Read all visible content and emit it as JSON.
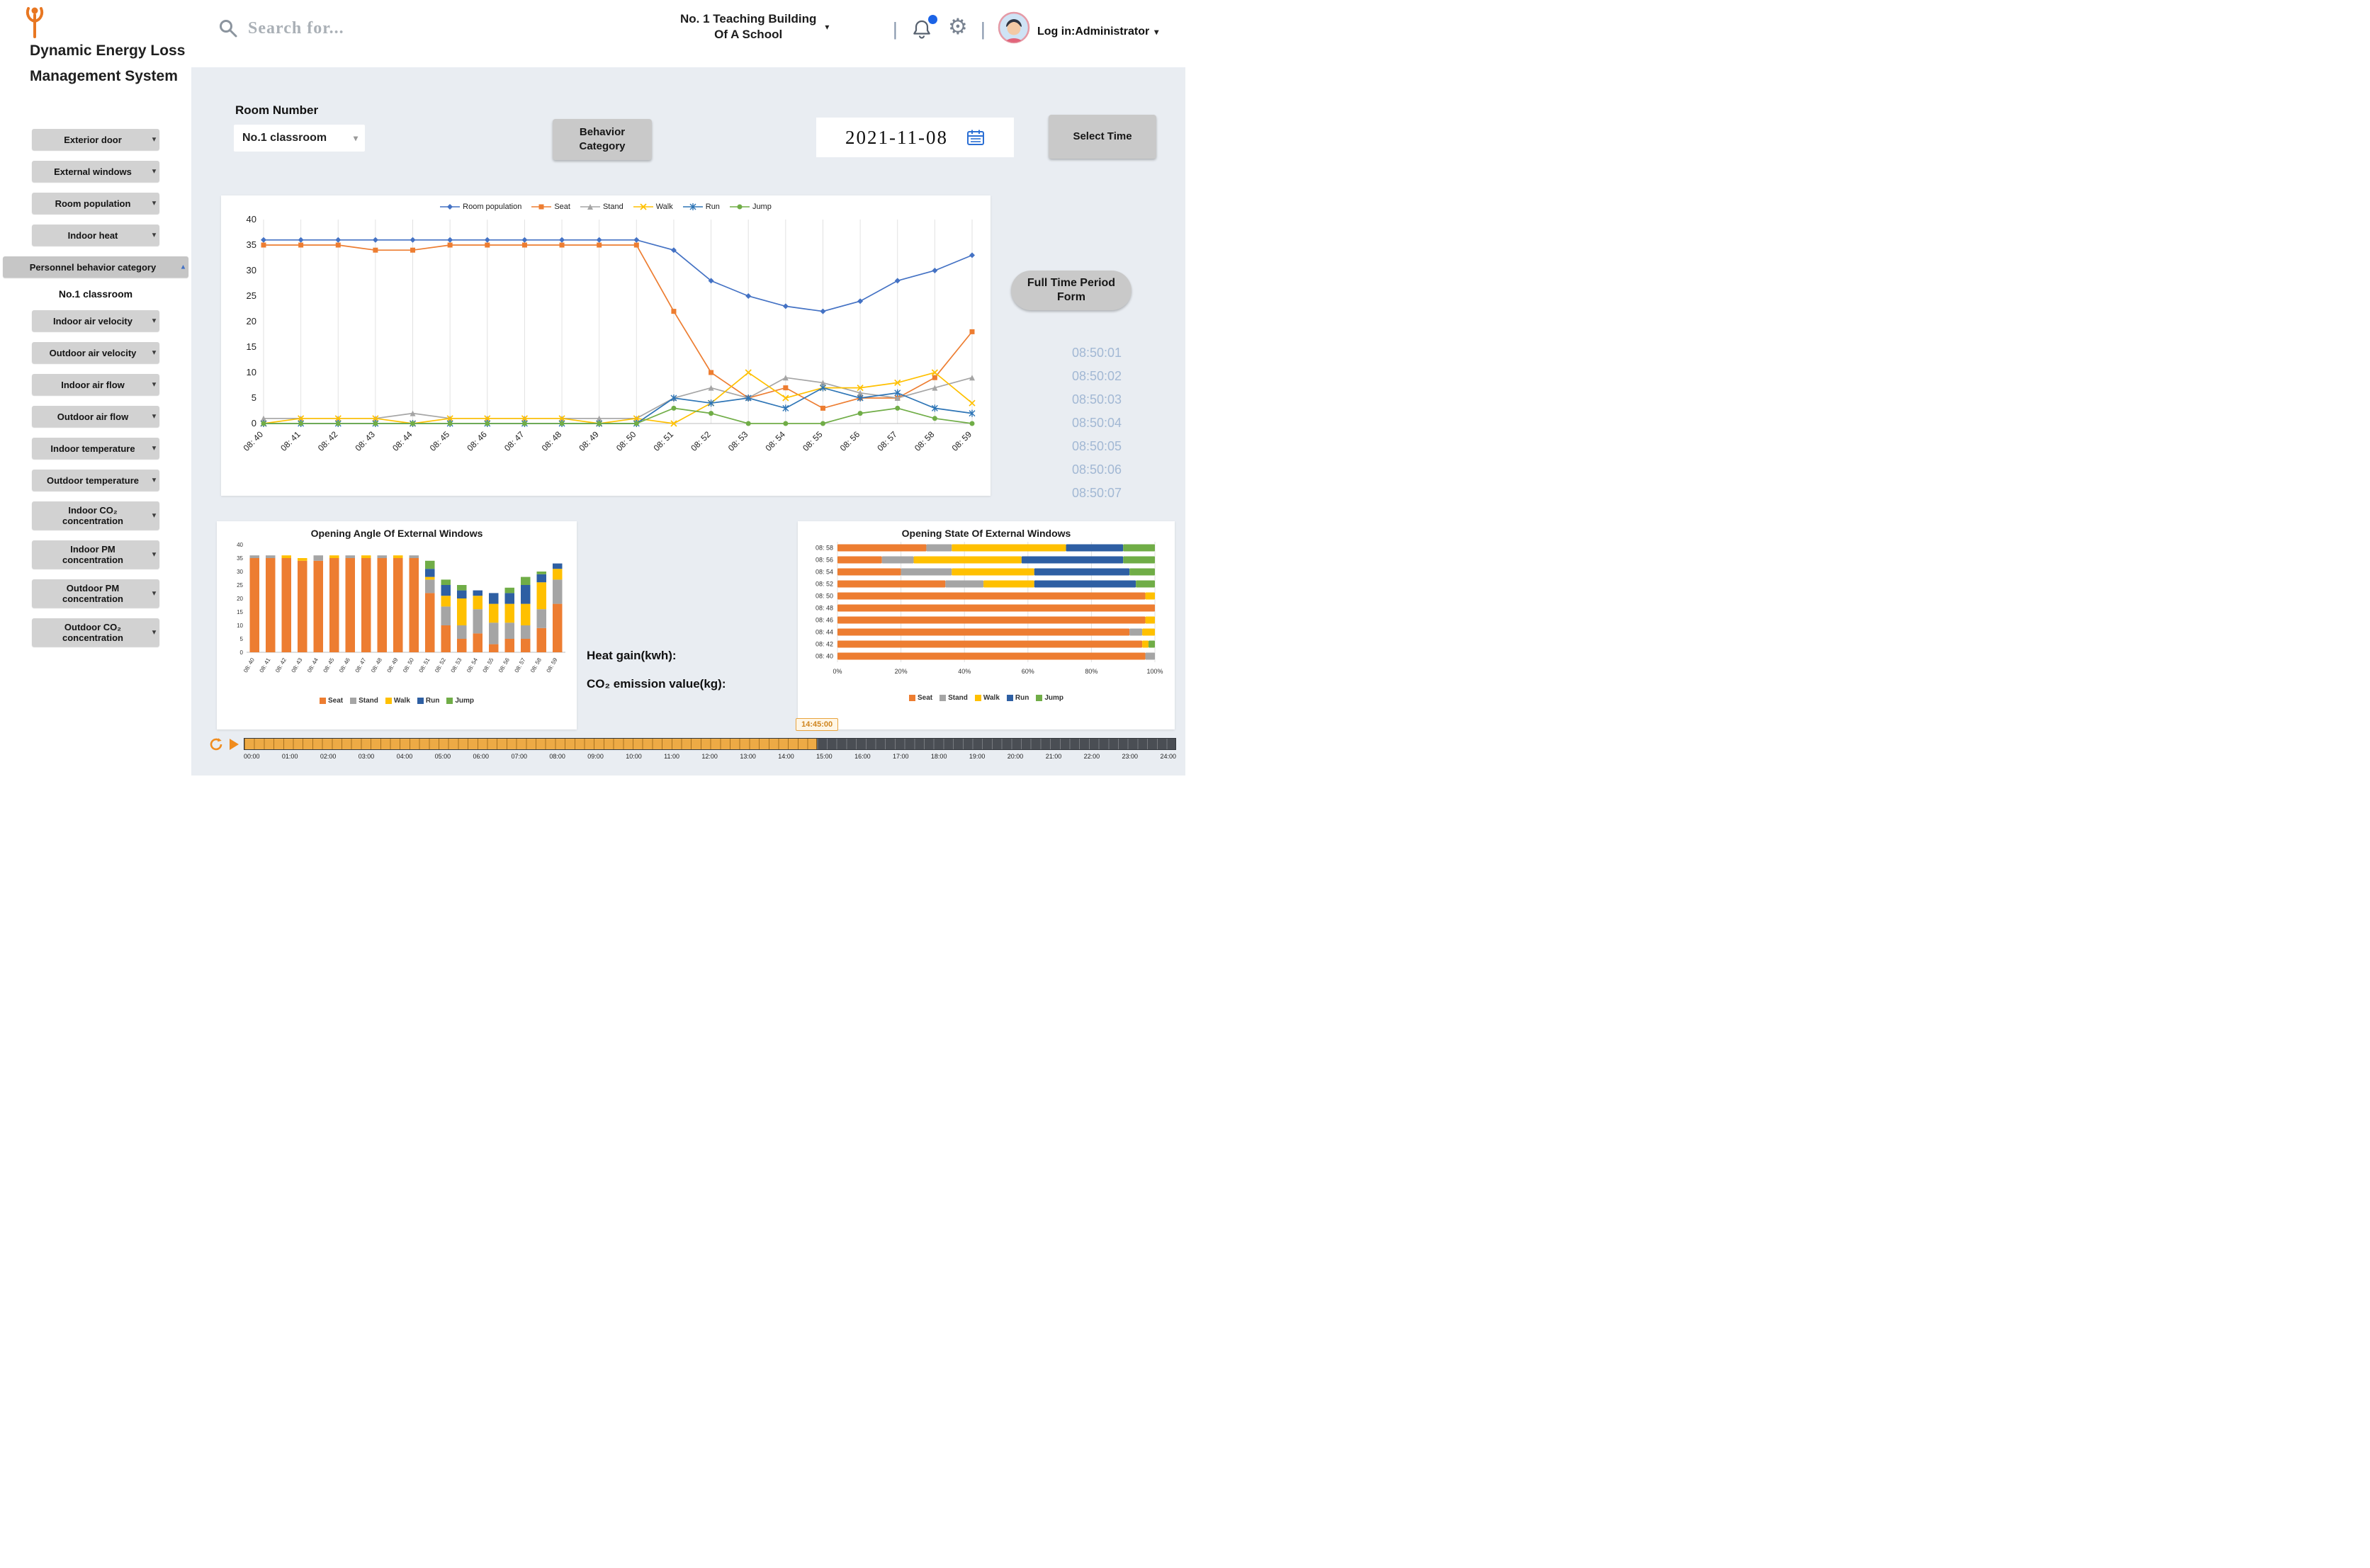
{
  "app": {
    "title_line1": "Dynamic Energy Loss",
    "title_line2": "Management System"
  },
  "topbar": {
    "search_placeholder": "Search for...",
    "building_line1": "No. 1 Teaching Building",
    "building_line2": "Of A School",
    "login_label": "Log in:Administrator"
  },
  "sidebar": {
    "items": [
      {
        "label": "Exterior door",
        "type": "button"
      },
      {
        "label": "External windows",
        "type": "button"
      },
      {
        "label": "Room population",
        "type": "button"
      },
      {
        "label": "Indoor heat",
        "type": "button"
      },
      {
        "label": "Personnel behavior category",
        "type": "active"
      },
      {
        "label": "No.1 classroom",
        "type": "text"
      },
      {
        "label": "Indoor air velocity",
        "type": "button"
      },
      {
        "label": "Outdoor air velocity",
        "type": "button"
      },
      {
        "label": "Indoor air flow",
        "type": "button"
      },
      {
        "label": "Outdoor air flow",
        "type": "button"
      },
      {
        "label": "Indoor temperature",
        "type": "button"
      },
      {
        "label": "Outdoor temperature",
        "type": "button"
      },
      {
        "label": "Indoor CO₂ concentration",
        "type": "button"
      },
      {
        "label": "Indoor PM concentration",
        "type": "button"
      },
      {
        "label": "Outdoor PM concentration",
        "type": "button"
      },
      {
        "label": "Outdoor CO₂ concentration",
        "type": "button"
      }
    ]
  },
  "controls": {
    "room_number_label": "Room Number",
    "room_select_value": "No.1 classroom",
    "behavior_button": "Behavior Category",
    "date_value": "2021-11-08",
    "select_time_button": "Select Time",
    "full_time_button": "Full Time Period Form"
  },
  "time_list": [
    "08:50:01",
    "08:50:02",
    "08:50:03",
    "08:50:04",
    "08:50:05",
    "08:50:06",
    "08:50:07"
  ],
  "info": {
    "heat_gain_label": "Heat gain(kwh):",
    "co2_label": "CO₂ emission value(kg):"
  },
  "timeline": {
    "marker": "14:45:00",
    "progress": 0.615,
    "labels": [
      "00:00",
      "01:00",
      "02:00",
      "03:00",
      "04:00",
      "05:00",
      "06:00",
      "07:00",
      "08:00",
      "09:00",
      "10:00",
      "11:00",
      "12:00",
      "13:00",
      "14:00",
      "15:00",
      "16:00",
      "17:00",
      "18:00",
      "19:00",
      "20:00",
      "21:00",
      "22:00",
      "23:00",
      "24:00"
    ]
  },
  "chart_data": [
    {
      "type": "line",
      "title": "",
      "categories": [
        "08: 40",
        "08: 41",
        "08: 42",
        "08: 43",
        "08: 44",
        "08: 45",
        "08: 46",
        "08: 47",
        "08: 48",
        "08: 49",
        "08: 50",
        "08: 51",
        "08: 52",
        "08: 53",
        "08: 54",
        "08: 55",
        "08: 56",
        "08: 57",
        "08: 58",
        "08: 59"
      ],
      "ylim": [
        0,
        40
      ],
      "yticks": [
        0,
        5,
        10,
        15,
        20,
        25,
        30,
        35,
        40
      ],
      "grid": "vertical",
      "legend_position": "top",
      "series": [
        {
          "name": "Room population",
          "color": "#4472c4",
          "marker": "diamond",
          "values": [
            36,
            36,
            36,
            36,
            36,
            36,
            36,
            36,
            36,
            36,
            36,
            34,
            28,
            25,
            23,
            22,
            24,
            28,
            30,
            33
          ]
        },
        {
          "name": "Seat",
          "color": "#ed7d31",
          "marker": "square",
          "values": [
            35,
            35,
            35,
            34,
            34,
            35,
            35,
            35,
            35,
            35,
            35,
            22,
            10,
            5,
            7,
            3,
            5,
            5,
            9,
            18
          ]
        },
        {
          "name": "Stand",
          "color": "#a5a5a5",
          "marker": "triangle",
          "values": [
            1,
            1,
            1,
            1,
            2,
            1,
            1,
            1,
            1,
            1,
            1,
            5,
            7,
            5,
            9,
            8,
            6,
            5,
            7,
            9
          ]
        },
        {
          "name": "Walk",
          "color": "#ffc000",
          "marker": "x",
          "values": [
            0,
            1,
            1,
            1,
            0,
            1,
            1,
            1,
            1,
            0,
            1,
            0,
            4,
            10,
            5,
            7,
            7,
            8,
            10,
            4
          ]
        },
        {
          "name": "Run",
          "color": "#2e75b6",
          "marker": "star",
          "values": [
            0,
            0,
            0,
            0,
            0,
            0,
            0,
            0,
            0,
            0,
            0,
            5,
            4,
            5,
            3,
            7,
            5,
            6,
            3,
            2
          ]
        },
        {
          "name": "Jump",
          "color": "#70ad47",
          "marker": "circle",
          "values": [
            0,
            0,
            0,
            0,
            0,
            0,
            0,
            0,
            0,
            0,
            0,
            3,
            2,
            0,
            0,
            0,
            2,
            3,
            1,
            0
          ]
        }
      ]
    },
    {
      "type": "stacked-bar",
      "title": "Opening Angle Of External Windows",
      "categories": [
        "08: 40",
        "08: 41",
        "08: 42",
        "08: 43",
        "08: 44",
        "08: 45",
        "08: 46",
        "08: 47",
        "08: 48",
        "08: 49",
        "08: 50",
        "08: 51",
        "08: 52",
        "08: 53",
        "08: 54",
        "08: 55",
        "08: 56",
        "08: 57",
        "08: 58",
        "08: 59"
      ],
      "ylim": [
        0,
        40
      ],
      "yticks": [
        0,
        5,
        10,
        15,
        20,
        25,
        30,
        35,
        40
      ],
      "legend_position": "bottom",
      "series": [
        {
          "name": "Seat",
          "color": "#ed7d31",
          "values": [
            35,
            35,
            35,
            34,
            34,
            35,
            35,
            35,
            35,
            35,
            35,
            22,
            10,
            5,
            7,
            3,
            5,
            5,
            9,
            18
          ]
        },
        {
          "name": "Stand",
          "color": "#a5a5a5",
          "values": [
            1,
            1,
            0,
            0,
            2,
            0,
            1,
            0,
            1,
            0,
            1,
            5,
            7,
            5,
            9,
            8,
            6,
            5,
            7,
            9
          ]
        },
        {
          "name": "Walk",
          "color": "#ffc000",
          "values": [
            0,
            0,
            1,
            1,
            0,
            1,
            0,
            1,
            0,
            1,
            0,
            1,
            4,
            10,
            5,
            7,
            7,
            8,
            10,
            4
          ]
        },
        {
          "name": "Run",
          "color": "#2e5fa3",
          "values": [
            0,
            0,
            0,
            0,
            0,
            0,
            0,
            0,
            0,
            0,
            0,
            3,
            4,
            3,
            2,
            4,
            4,
            7,
            3,
            2
          ]
        },
        {
          "name": "Jump",
          "color": "#70ad47",
          "values": [
            0,
            0,
            0,
            0,
            0,
            0,
            0,
            0,
            0,
            0,
            0,
            3,
            2,
            2,
            0,
            0,
            2,
            3,
            1,
            0
          ]
        }
      ]
    },
    {
      "type": "hbar-100",
      "title": "Opening State Of External Windows",
      "categories": [
        "08: 58",
        "08: 56",
        "08: 54",
        "08: 52",
        "08: 50",
        "08: 48",
        "08: 46",
        "08: 44",
        "08: 42",
        "08: 40"
      ],
      "xticks": [
        "0%",
        "20%",
        "40%",
        "60%",
        "80%",
        "100%"
      ],
      "legend_position": "bottom",
      "series": [
        {
          "name": "Seat",
          "color": "#ed7d31",
          "values": [
            28,
            14,
            20,
            34,
            97,
            100,
            97,
            92,
            96,
            97
          ]
        },
        {
          "name": "Stand",
          "color": "#a5a5a5",
          "values": [
            8,
            10,
            16,
            12,
            0,
            0,
            0,
            4,
            0,
            3
          ]
        },
        {
          "name": "Walk",
          "color": "#ffc000",
          "values": [
            36,
            34,
            26,
            16,
            3,
            0,
            3,
            4,
            2,
            0
          ]
        },
        {
          "name": "Run",
          "color": "#2e5fa3",
          "values": [
            18,
            32,
            30,
            32,
            0,
            0,
            0,
            0,
            0,
            0
          ]
        },
        {
          "name": "Jump",
          "color": "#70ad47",
          "values": [
            10,
            10,
            8,
            6,
            0,
            0,
            0,
            0,
            2,
            0
          ]
        }
      ]
    }
  ]
}
